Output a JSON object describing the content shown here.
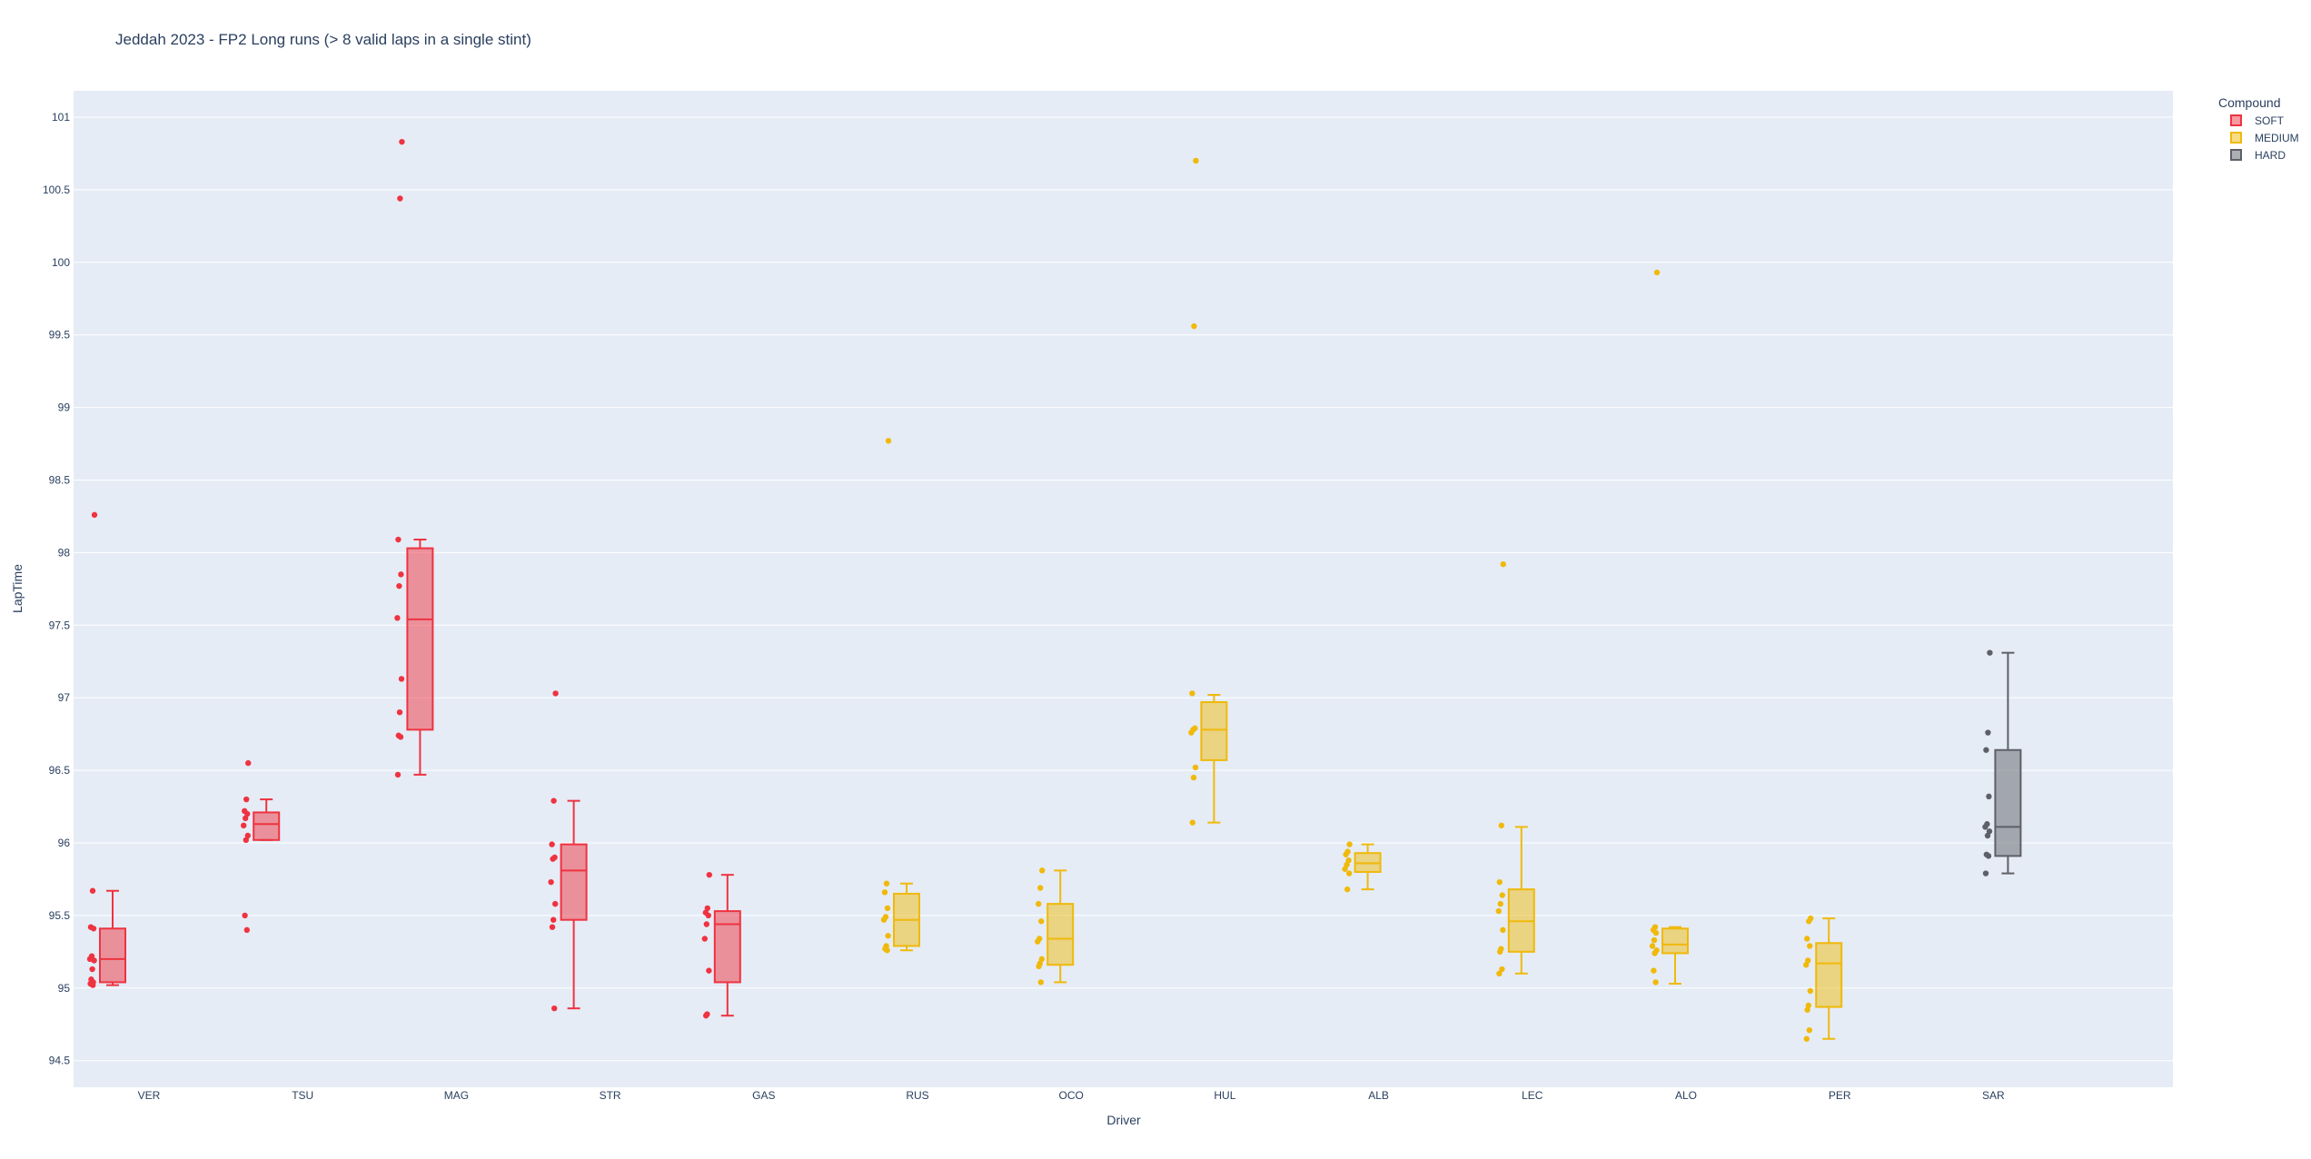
{
  "chart_data": {
    "type": "box",
    "title": "Jeddah 2023 - FP2 Long runs (> 8  valid laps in a single stint)",
    "xlabel": "Driver",
    "ylabel": "LapTime",
    "ylim": [
      94.3,
      101.2
    ],
    "yticks": [
      94.5,
      95,
      95.5,
      96,
      96.5,
      97,
      97.5,
      98,
      98.5,
      99,
      99.5,
      100,
      100.5,
      101
    ],
    "categories": [
      "VER",
      "TSU",
      "MAG",
      "STR",
      "GAS",
      "RUS",
      "OCO",
      "HUL",
      "ALB",
      "LEC",
      "ALO",
      "PER",
      "SAR"
    ],
    "grid": true,
    "legend": {
      "title": "Compound",
      "position": "top-right",
      "entries": [
        {
          "name": "SOFT",
          "color": "#ef3340"
        },
        {
          "name": "MEDIUM",
          "color": "#f0b90b"
        },
        {
          "name": "HARD",
          "color": "#5e6068"
        }
      ]
    },
    "series": [
      {
        "driver": "VER",
        "compound": "SOFT",
        "color": "#ef3340",
        "box_offset": 0,
        "q1": 95.04,
        "median": 95.2,
        "q3": 95.41,
        "lower_whisker": 95.02,
        "upper_whisker": 95.67,
        "points": [
          98.26,
          95.67,
          95.42,
          95.41,
          95.22,
          95.2,
          95.19,
          95.13,
          95.06,
          95.04,
          95.03,
          95.02
        ]
      },
      {
        "driver": "TSU",
        "compound": "SOFT",
        "color": "#ef3340",
        "box_offset": 0,
        "q1": 96.02,
        "median": 96.13,
        "q3": 96.21,
        "lower_whisker": 96.02,
        "upper_whisker": 96.3,
        "points": [
          96.55,
          96.3,
          96.22,
          96.2,
          96.17,
          96.12,
          96.05,
          96.02,
          95.5,
          95.4
        ]
      },
      {
        "driver": "MAG",
        "compound": "SOFT",
        "color": "#ef3340",
        "box_offset": 0,
        "q1": 96.78,
        "median": 97.54,
        "q3": 98.03,
        "lower_whisker": 96.47,
        "upper_whisker": 98.09,
        "points": [
          100.83,
          100.44,
          98.09,
          97.85,
          97.77,
          97.55,
          97.13,
          96.9,
          96.74,
          96.73,
          96.47
        ]
      },
      {
        "driver": "STR",
        "compound": "SOFT",
        "color": "#ef3340",
        "box_offset": 0,
        "q1": 95.47,
        "median": 95.81,
        "q3": 95.99,
        "lower_whisker": 94.86,
        "upper_whisker": 96.29,
        "points": [
          97.03,
          96.29,
          95.99,
          95.9,
          95.89,
          95.73,
          95.58,
          95.47,
          95.42,
          94.86
        ]
      },
      {
        "driver": "GAS",
        "compound": "SOFT",
        "color": "#ef3340",
        "box_offset": 0,
        "q1": 95.04,
        "median": 95.44,
        "q3": 95.53,
        "lower_whisker": 94.81,
        "upper_whisker": 95.78,
        "points": [
          95.78,
          95.55,
          95.52,
          95.5,
          95.44,
          95.34,
          95.12,
          94.82,
          94.81
        ]
      },
      {
        "driver": "RUS",
        "compound": "MEDIUM",
        "color": "#f0b90b",
        "box_offset": 1,
        "q1": 95.29,
        "median": 95.47,
        "q3": 95.65,
        "lower_whisker": 95.26,
        "upper_whisker": 95.72,
        "points": [
          98.77,
          95.72,
          95.66,
          95.55,
          95.49,
          95.47,
          95.36,
          95.29,
          95.27,
          95.26
        ]
      },
      {
        "driver": "OCO",
        "compound": "MEDIUM",
        "color": "#f0b90b",
        "box_offset": 1,
        "q1": 95.16,
        "median": 95.34,
        "q3": 95.58,
        "lower_whisker": 95.04,
        "upper_whisker": 95.81,
        "points": [
          95.81,
          95.69,
          95.58,
          95.46,
          95.34,
          95.32,
          95.2,
          95.17,
          95.15,
          95.04
        ]
      },
      {
        "driver": "HUL",
        "compound": "MEDIUM",
        "color": "#f0b90b",
        "box_offset": 1,
        "q1": 96.57,
        "median": 96.78,
        "q3": 96.97,
        "lower_whisker": 96.14,
        "upper_whisker": 97.02,
        "points": [
          100.7,
          99.56,
          97.03,
          96.79,
          96.78,
          96.76,
          96.52,
          96.45,
          96.14
        ]
      },
      {
        "driver": "ALB",
        "compound": "MEDIUM",
        "color": "#f0b90b",
        "box_offset": 1,
        "q1": 95.8,
        "median": 95.86,
        "q3": 95.93,
        "lower_whisker": 95.68,
        "upper_whisker": 95.99,
        "points": [
          95.99,
          95.94,
          95.92,
          95.88,
          95.85,
          95.82,
          95.79,
          95.68
        ]
      },
      {
        "driver": "LEC",
        "compound": "MEDIUM",
        "color": "#f0b90b",
        "box_offset": 1,
        "q1": 95.25,
        "median": 95.46,
        "q3": 95.68,
        "lower_whisker": 95.1,
        "upper_whisker": 96.11,
        "points": [
          97.92,
          96.12,
          95.73,
          95.64,
          95.58,
          95.53,
          95.4,
          95.27,
          95.25,
          95.13,
          95.1
        ]
      },
      {
        "driver": "ALO",
        "compound": "MEDIUM",
        "color": "#f0b90b",
        "box_offset": 1,
        "q1": 95.24,
        "median": 95.3,
        "q3": 95.41,
        "lower_whisker": 95.03,
        "upper_whisker": 95.42,
        "points": [
          99.93,
          95.42,
          95.4,
          95.38,
          95.33,
          95.29,
          95.26,
          95.24,
          95.12,
          95.04
        ]
      },
      {
        "driver": "PER",
        "compound": "MEDIUM",
        "color": "#f0b90b",
        "box_offset": 1,
        "q1": 94.87,
        "median": 95.17,
        "q3": 95.31,
        "lower_whisker": 94.65,
        "upper_whisker": 95.48,
        "points": [
          95.48,
          95.46,
          95.34,
          95.29,
          95.19,
          95.16,
          94.98,
          94.88,
          94.85,
          94.71,
          94.65
        ]
      },
      {
        "driver": "SAR",
        "compound": "HARD",
        "color": "#5e6068",
        "box_offset": 2,
        "q1": 95.91,
        "median": 96.11,
        "q3": 96.64,
        "lower_whisker": 95.79,
        "upper_whisker": 97.31,
        "points": [
          97.31,
          96.76,
          96.64,
          96.32,
          96.13,
          96.11,
          96.08,
          96.05,
          95.92,
          95.91,
          95.79
        ]
      }
    ]
  }
}
